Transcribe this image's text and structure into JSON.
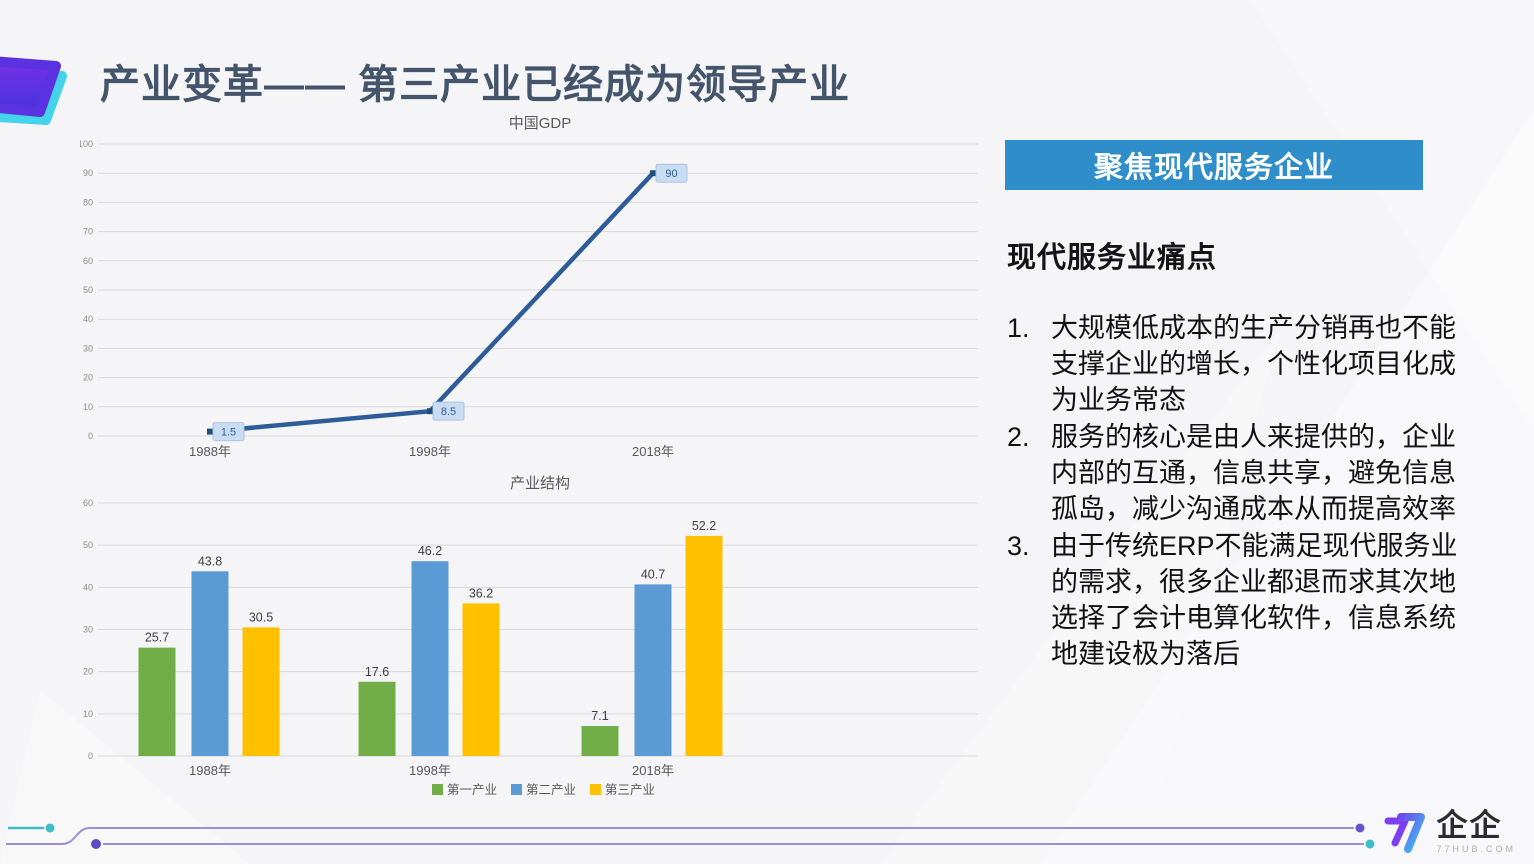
{
  "slide": {
    "title": "产业变革—— 第三产业已经成为领导产业"
  },
  "chart_data": [
    {
      "type": "line",
      "title": "中国GDP",
      "categories": [
        "1988年",
        "1998年",
        "2018年"
      ],
      "values": [
        1.5,
        8.5,
        90
      ],
      "data_labels": [
        "1.5",
        "8.5",
        "90"
      ],
      "xlabel": "",
      "ylabel": "",
      "ylim": [
        0,
        100
      ],
      "ytick_step": 10,
      "grid": true,
      "legend_position": "none",
      "line_color": "#2E5C98",
      "marker_color": "#1F4E79",
      "label_bg": "#C9DCF1",
      "label_text_color": "#2E5C98"
    },
    {
      "type": "bar",
      "title": "产业结构",
      "categories": [
        "1988年",
        "1998年",
        "2018年"
      ],
      "series": [
        {
          "name": "第一产业",
          "color": "#70AD47",
          "values": [
            25.7,
            17.6,
            7.1
          ]
        },
        {
          "name": "第二产业",
          "color": "#5B9BD5",
          "values": [
            43.8,
            46.2,
            40.7
          ]
        },
        {
          "name": "第三产业",
          "color": "#FFC000",
          "values": [
            30.5,
            36.2,
            52.2
          ]
        }
      ],
      "xlabel": "",
      "ylabel": "",
      "ylim": [
        0,
        60
      ],
      "ytick_step": 10,
      "grid": true,
      "legend_position": "bottom"
    }
  ],
  "panel": {
    "banner": "聚焦现代服务企业",
    "banner_color": "#2F8DC9",
    "heading": "现代服务业痛点",
    "items": [
      {
        "num": "1.",
        "text": "大规模低成本的生产分销再也不能支撑企业的增长，个性化项目化成为业务常态"
      },
      {
        "num": "2.",
        "text": "服务的核心是由人来提供的，企业内部的互通，信息共享，避免信息孤岛，减少沟通成本从而提高效率"
      },
      {
        "num": "3.",
        "text": "由于传统ERP不能满足现代服务业的需求，很多企业都退而求其次地选择了会计电算化软件，信息系统地建设极为落后"
      }
    ]
  },
  "footer": {
    "brand": "企企",
    "domain": "77HUB.COM",
    "teal": "#3FBDC5",
    "purple": "#6654C8"
  },
  "colors": {
    "title": "#44546A",
    "grid": "#D9D9D9",
    "tick_text": "#8C8C8C",
    "axis_text": "#595959",
    "value_label": "#404040",
    "chart_title": "#595959"
  }
}
